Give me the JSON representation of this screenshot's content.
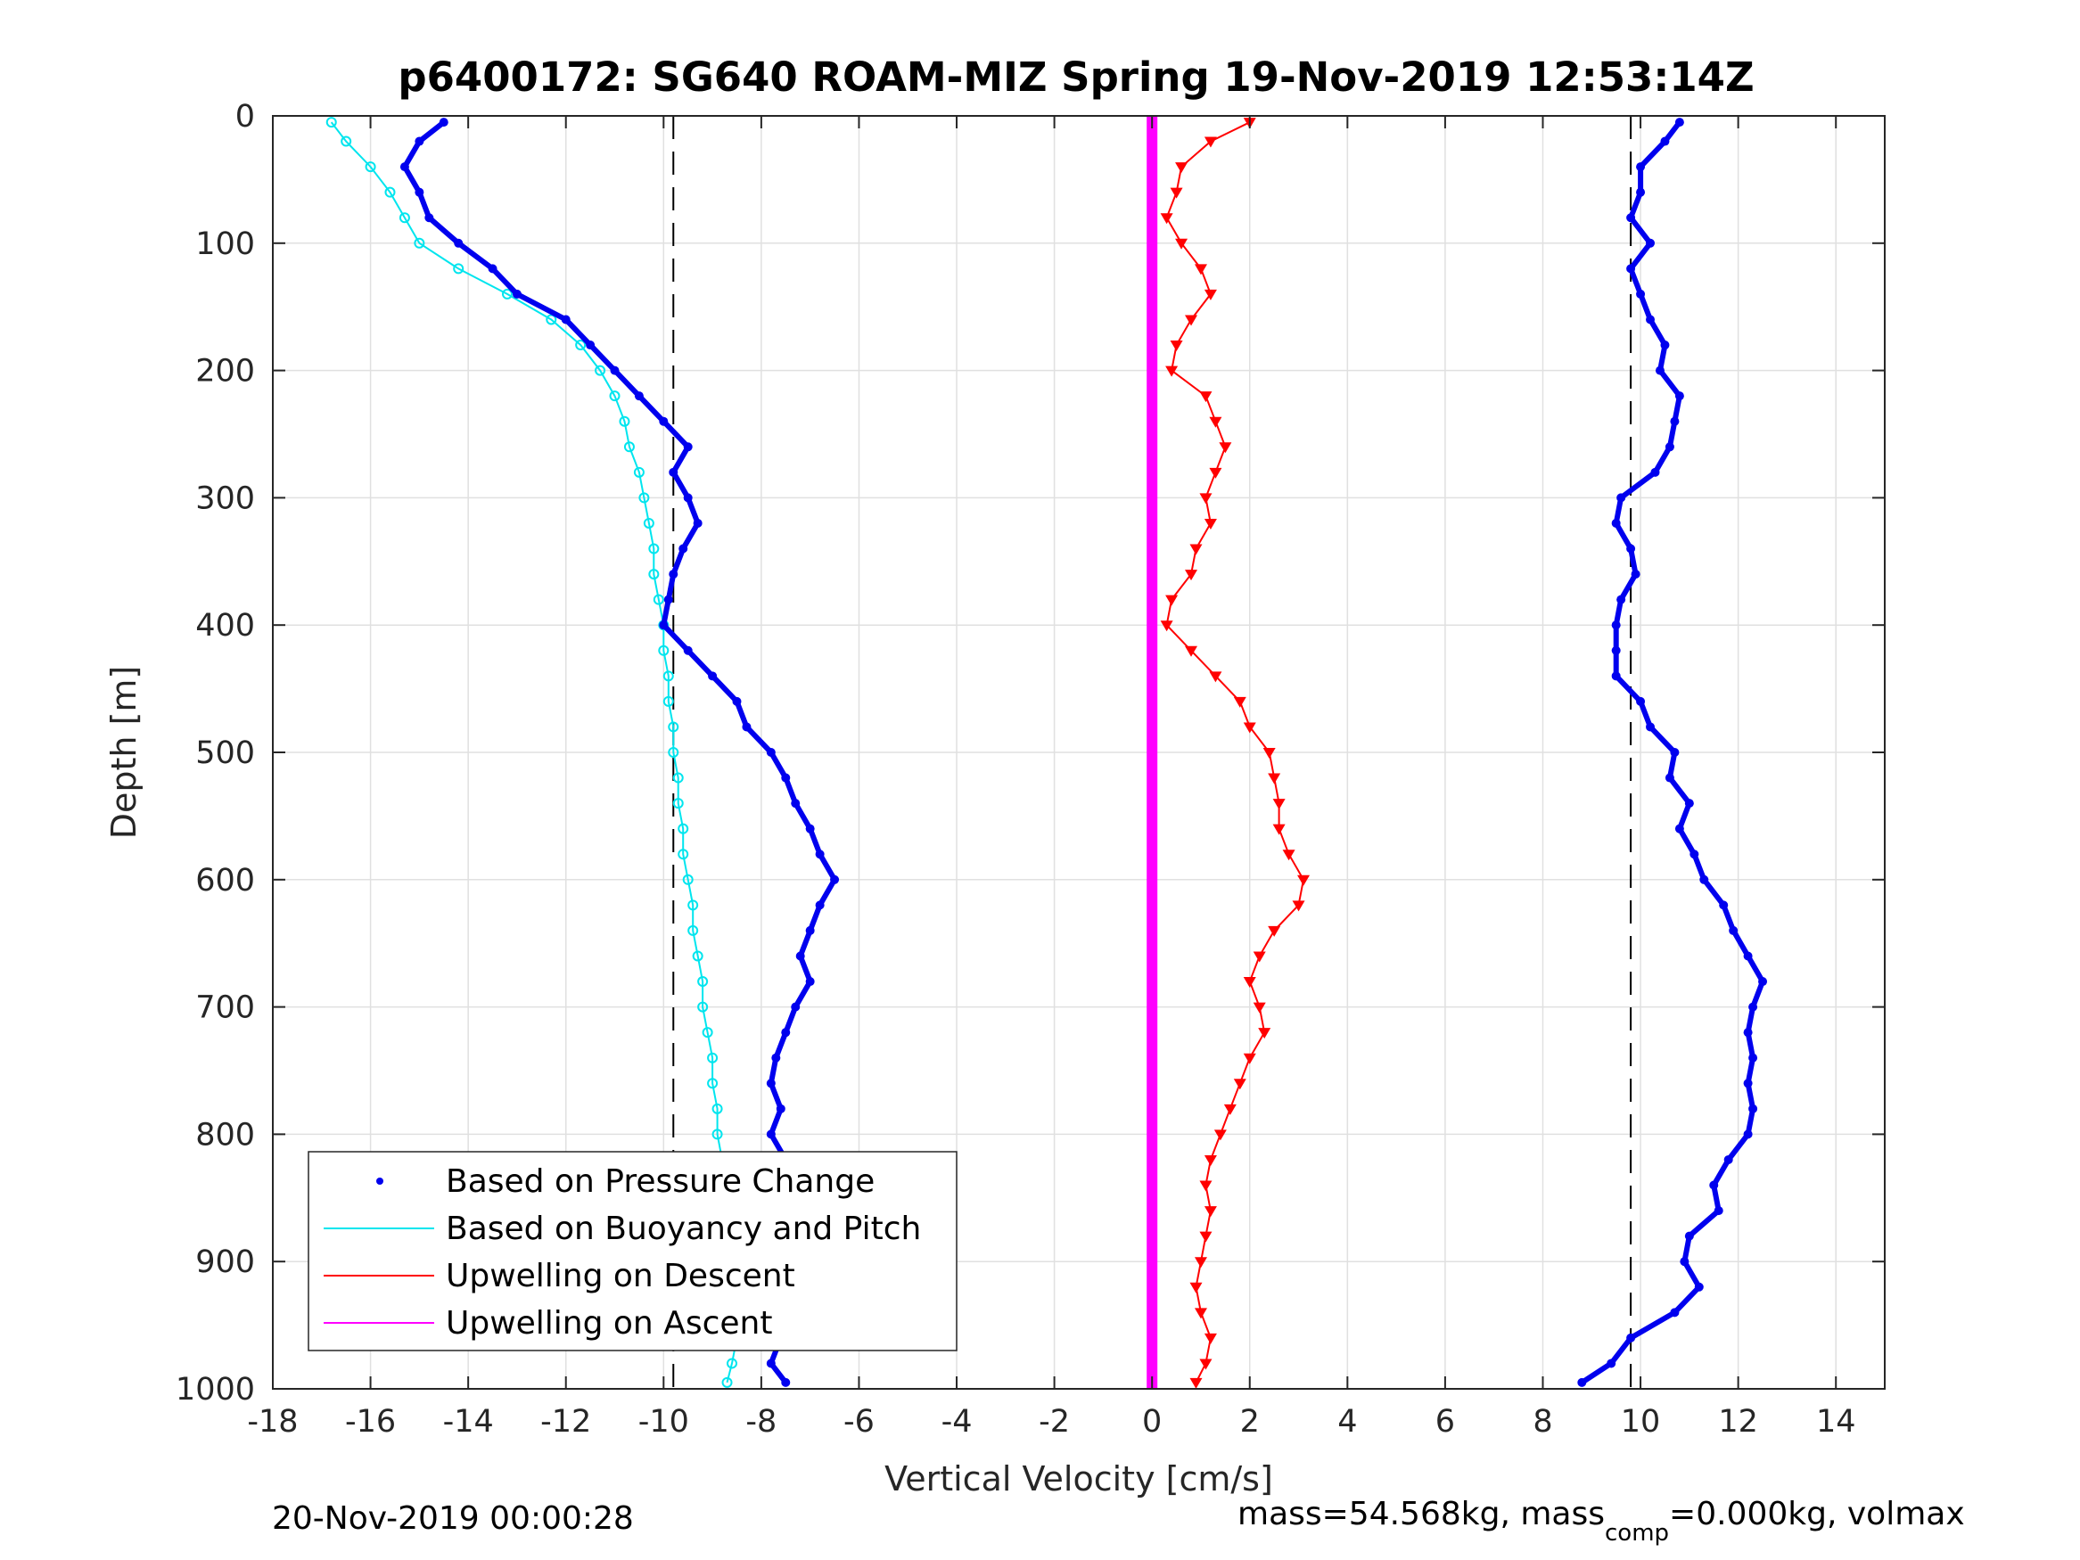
{
  "chart_data": {
    "type": "scatter",
    "title": "p6400172: SG640 ROAM-MIZ Spring 19-Nov-2019 12:53:14Z",
    "xlabel": "Vertical Velocity [cm/s]",
    "ylabel": "Depth [m]",
    "xlim": [
      -18,
      15
    ],
    "ylim": [
      0,
      1000
    ],
    "y_reversed": true,
    "x_ticks": [
      -18,
      -16,
      -14,
      -12,
      -10,
      -8,
      -6,
      -4,
      -2,
      0,
      2,
      4,
      6,
      8,
      10,
      12,
      14
    ],
    "y_ticks": [
      0,
      100,
      200,
      300,
      400,
      500,
      600,
      700,
      800,
      900,
      1000
    ],
    "grid": true,
    "legend_position": "bottom-left",
    "reference_lines": [
      -9.8,
      9.8
    ],
    "colors": {
      "pressure": "#0000ee",
      "buoyancy": "#00e5ee",
      "descent": "#ff0000",
      "ascent": "#ff00ff",
      "grid": "#e0e0e0"
    },
    "series": [
      {
        "name": "Based on Pressure Change",
        "descent_profile": {
          "depth": [
            5,
            20,
            40,
            60,
            80,
            100,
            120,
            140,
            160,
            180,
            200,
            220,
            240,
            260,
            280,
            300,
            320,
            340,
            360,
            380,
            400,
            420,
            440,
            460,
            480,
            500,
            520,
            540,
            560,
            580,
            600,
            620,
            640,
            660,
            680,
            700,
            720,
            740,
            760,
            780,
            800,
            820,
            840,
            860,
            880,
            900,
            920,
            940,
            960,
            980,
            995
          ],
          "velocity": [
            -14.5,
            -15.0,
            -15.3,
            -15.0,
            -14.8,
            -14.2,
            -13.5,
            -13.0,
            -12.0,
            -11.5,
            -11.0,
            -10.5,
            -10.0,
            -9.5,
            -9.8,
            -9.5,
            -9.3,
            -9.6,
            -9.8,
            -9.9,
            -10.0,
            -9.5,
            -9.0,
            -8.5,
            -8.3,
            -7.8,
            -7.5,
            -7.3,
            -7.0,
            -6.8,
            -6.5,
            -6.8,
            -7.0,
            -7.2,
            -7.0,
            -7.3,
            -7.5,
            -7.7,
            -7.8,
            -7.6,
            -7.8,
            -7.5,
            -7.6,
            -7.7,
            -7.8,
            -7.5,
            -7.4,
            -7.5,
            -7.6,
            -7.8,
            -7.5
          ]
        },
        "ascent_profile": {
          "depth": [
            5,
            20,
            40,
            60,
            80,
            100,
            120,
            140,
            160,
            180,
            200,
            220,
            240,
            260,
            280,
            300,
            320,
            340,
            360,
            380,
            400,
            420,
            440,
            460,
            480,
            500,
            520,
            540,
            560,
            580,
            600,
            620,
            640,
            660,
            680,
            700,
            720,
            740,
            760,
            780,
            800,
            820,
            840,
            860,
            880,
            900,
            920,
            940,
            960,
            980,
            995
          ],
          "velocity": [
            10.8,
            10.5,
            10.0,
            10.0,
            9.8,
            10.2,
            9.8,
            10.0,
            10.2,
            10.5,
            10.4,
            10.8,
            10.7,
            10.6,
            10.3,
            9.6,
            9.5,
            9.8,
            9.9,
            9.6,
            9.5,
            9.5,
            9.5,
            10.0,
            10.2,
            10.7,
            10.6,
            11.0,
            10.8,
            11.1,
            11.3,
            11.7,
            11.9,
            12.2,
            12.5,
            12.3,
            12.2,
            12.3,
            12.2,
            12.3,
            12.2,
            11.8,
            11.5,
            11.6,
            11.0,
            10.9,
            11.2,
            10.7,
            9.8,
            9.4,
            8.8
          ]
        }
      },
      {
        "name": "Based on Buoyancy and Pitch",
        "depth": [
          5,
          20,
          40,
          60,
          80,
          100,
          120,
          140,
          160,
          180,
          200,
          220,
          240,
          260,
          280,
          300,
          320,
          340,
          360,
          380,
          400,
          420,
          440,
          460,
          480,
          500,
          520,
          540,
          560,
          580,
          600,
          620,
          640,
          660,
          680,
          700,
          720,
          740,
          760,
          780,
          800,
          820,
          840,
          860,
          880,
          900,
          920,
          940,
          960,
          980,
          995
        ],
        "velocity": [
          -16.8,
          -16.5,
          -16.0,
          -15.6,
          -15.3,
          -15.0,
          -14.2,
          -13.2,
          -12.3,
          -11.7,
          -11.3,
          -11.0,
          -10.8,
          -10.7,
          -10.5,
          -10.4,
          -10.3,
          -10.2,
          -10.2,
          -10.1,
          -10.0,
          -10.0,
          -9.9,
          -9.9,
          -9.8,
          -9.8,
          -9.7,
          -9.7,
          -9.6,
          -9.6,
          -9.5,
          -9.4,
          -9.4,
          -9.3,
          -9.2,
          -9.2,
          -9.1,
          -9.0,
          -9.0,
          -8.9,
          -8.9,
          -8.8,
          -8.8,
          -8.7,
          -8.7,
          -8.6,
          -8.6,
          -8.5,
          -8.5,
          -8.6,
          -8.7
        ]
      },
      {
        "name": "Upwelling on Descent",
        "depth": [
          5,
          20,
          40,
          60,
          80,
          100,
          120,
          140,
          160,
          180,
          200,
          220,
          240,
          260,
          280,
          300,
          320,
          340,
          360,
          380,
          400,
          420,
          440,
          460,
          480,
          500,
          520,
          540,
          560,
          580,
          600,
          620,
          640,
          660,
          680,
          700,
          720,
          740,
          760,
          780,
          800,
          820,
          840,
          860,
          880,
          900,
          920,
          940,
          960,
          980,
          995
        ],
        "velocity": [
          2.0,
          1.2,
          0.6,
          0.5,
          0.3,
          0.6,
          1.0,
          1.2,
          0.8,
          0.5,
          0.4,
          1.1,
          1.3,
          1.5,
          1.3,
          1.1,
          1.2,
          0.9,
          0.8,
          0.4,
          0.3,
          0.8,
          1.3,
          1.8,
          2.0,
          2.4,
          2.5,
          2.6,
          2.6,
          2.8,
          3.1,
          3.0,
          2.5,
          2.2,
          2.0,
          2.2,
          2.3,
          2.0,
          1.8,
          1.6,
          1.4,
          1.2,
          1.1,
          1.2,
          1.1,
          1.0,
          0.9,
          1.0,
          1.2,
          1.1,
          0.9
        ]
      },
      {
        "name": "Upwelling on Ascent",
        "depth": [
          0,
          1000
        ],
        "velocity": [
          0,
          0
        ]
      }
    ]
  },
  "footer": {
    "left": "20-Nov-2019 00:00:28",
    "right_part1": "mass=54.568kg, mass",
    "right_sub": "comp",
    "right_part2": "=0.000kg, volmax"
  }
}
